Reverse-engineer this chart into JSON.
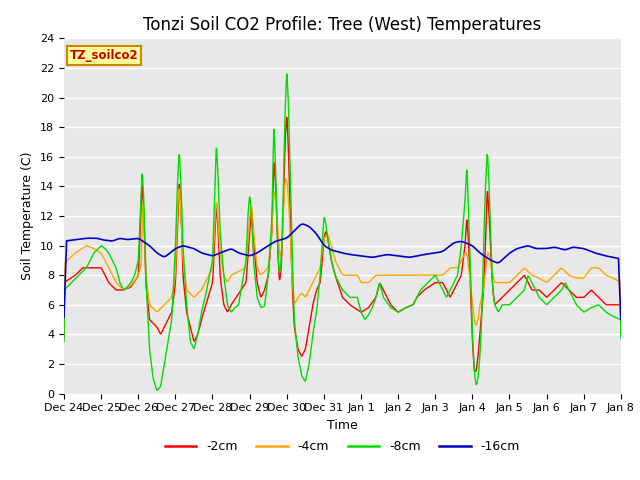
{
  "title": "Tonzi Soil CO2 Profile: Tree (West) Temperatures",
  "xlabel": "Time",
  "ylabel": "Soil Temperature (C)",
  "ylim": [
    0,
    24
  ],
  "yticks": [
    0,
    2,
    4,
    6,
    8,
    10,
    12,
    14,
    16,
    18,
    20,
    22,
    24
  ],
  "xtick_labels": [
    "Dec 24",
    "Dec 25",
    "Dec 26",
    "Dec 27",
    "Dec 28",
    "Dec 29",
    "Dec 30",
    "Dec 31",
    "Jan 1",
    "Jan 2",
    "Jan 3",
    "Jan 4",
    "Jan 5",
    "Jan 6",
    "Jan 7",
    "Jan 8"
  ],
  "legend_label": "TZ_soilco2",
  "line_labels": [
    "-2cm",
    "-4cm",
    "-8cm",
    "-16cm"
  ],
  "line_colors": [
    "#ff0000",
    "#ffa500",
    "#00dd00",
    "#0000cc"
  ],
  "background_color": "#e8e8e8",
  "title_fontsize": 12,
  "axis_label_fontsize": 9,
  "tick_fontsize": 8,
  "legend_box_color": "#ffff99",
  "legend_box_edge": "#cc8800",
  "legend_text_color": "#cc0000"
}
